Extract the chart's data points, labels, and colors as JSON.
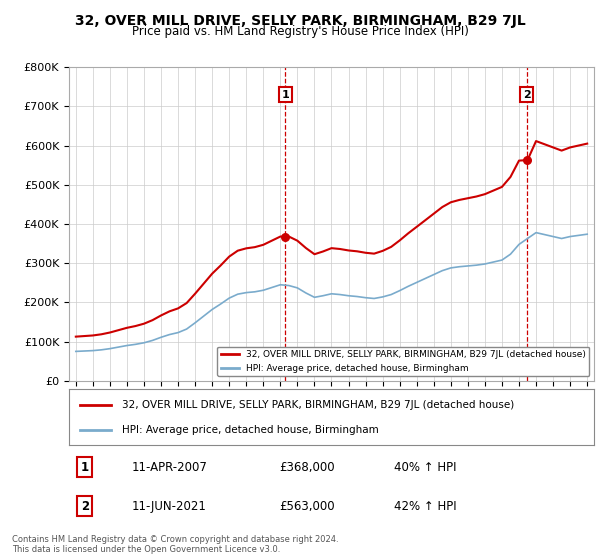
{
  "title": "32, OVER MILL DRIVE, SELLY PARK, BIRMINGHAM, B29 7JL",
  "subtitle": "Price paid vs. HM Land Registry's House Price Index (HPI)",
  "footer": "Contains HM Land Registry data © Crown copyright and database right 2024.\nThis data is licensed under the Open Government Licence v3.0.",
  "legend_label_red": "32, OVER MILL DRIVE, SELLY PARK, BIRMINGHAM, B29 7JL (detached house)",
  "legend_label_blue": "HPI: Average price, detached house, Birmingham",
  "event1_num": "1",
  "event1_label": "11-APR-2007",
  "event1_price": "£368,000",
  "event1_note": "40% ↑ HPI",
  "event1_year": 2007.29,
  "event1_value": 368000,
  "event2_num": "2",
  "event2_label": "11-JUN-2021",
  "event2_price": "£563,000",
  "event2_note": "42% ↑ HPI",
  "event2_year": 2021.45,
  "event2_value": 563000,
  "ylim": [
    0,
    800000
  ],
  "xlim": [
    1994.6,
    2025.4
  ],
  "yticks": [
    0,
    100000,
    200000,
    300000,
    400000,
    500000,
    600000,
    700000,
    800000
  ],
  "ytick_labels": [
    "£0",
    "£100K",
    "£200K",
    "£300K",
    "£400K",
    "£500K",
    "£600K",
    "£700K",
    "£800K"
  ],
  "red_color": "#cc0000",
  "blue_color": "#7aabcc",
  "event_vline_color": "#cc0000",
  "background_color": "#ffffff",
  "plot_bg_color": "#ffffff",
  "grid_color": "#cccccc",
  "marker1_y": 730000,
  "marker2_y": 730000
}
